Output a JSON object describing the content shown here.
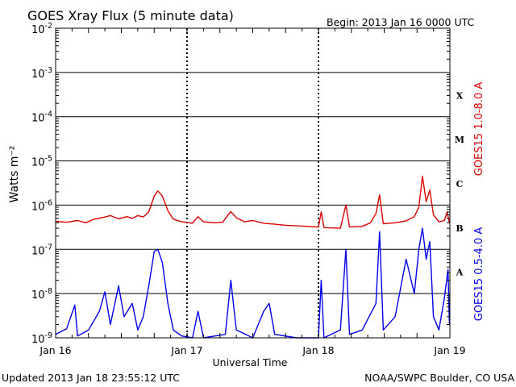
{
  "header": {
    "title": "GOES Xray Flux (5 minute data)",
    "begin": "Begin:  2013 Jan 16 0000 UTC"
  },
  "footer": {
    "updated": "Updated 2013 Jan 18 23:55:12 UTC",
    "credit": "NOAA/SWPC Boulder, CO USA"
  },
  "chart_data": {
    "type": "line",
    "title": "GOES Xray Flux (5 minute data)",
    "xlabel": "Universal Time",
    "ylabel": "Watts m⁻²",
    "yscale": "log",
    "ylim": [
      1e-09,
      0.01
    ],
    "grid": true,
    "x_ticks": [
      "Jan 16",
      "Jan 17",
      "Jan 18",
      "Jan 19"
    ],
    "y_ticks": [
      {
        "base": "10",
        "exp": "-2"
      },
      {
        "base": "10",
        "exp": "-3"
      },
      {
        "base": "10",
        "exp": "-4"
      },
      {
        "base": "10",
        "exp": "-5"
      },
      {
        "base": "10",
        "exp": "-6"
      },
      {
        "base": "10",
        "exp": "-7"
      },
      {
        "base": "10",
        "exp": "-8"
      },
      {
        "base": "10",
        "exp": "-9"
      }
    ],
    "flare_classes": [
      {
        "label": "X",
        "value": 0.0001
      },
      {
        "label": "M",
        "value": 1e-05
      },
      {
        "label": "C",
        "value": 1e-06
      },
      {
        "label": "B",
        "value": 1e-07
      },
      {
        "label": "A",
        "value": 1e-08
      }
    ],
    "series": [
      {
        "name": "GOES15 1.0-8.0 A",
        "color": "#dd0000",
        "points": [
          [
            "Jan 16 00:00",
            4.3e-07
          ],
          [
            "Jan 16 02:00",
            4.1e-07
          ],
          [
            "Jan 16 04:00",
            4.5e-07
          ],
          [
            "Jan 16 05:30",
            4e-07
          ],
          [
            "Jan 16 07:00",
            4.8e-07
          ],
          [
            "Jan 16 08:30",
            5.2e-07
          ],
          [
            "Jan 16 10:00",
            5.8e-07
          ],
          [
            "Jan 16 11:30",
            4.9e-07
          ],
          [
            "Jan 16 13:00",
            5.5e-07
          ],
          [
            "Jan 16 14:00",
            5e-07
          ],
          [
            "Jan 16 15:00",
            5.8e-07
          ],
          [
            "Jan 16 16:00",
            5.4e-07
          ],
          [
            "Jan 16 17:00",
            7e-07
          ],
          [
            "Jan 16 18:00",
            1.6e-06
          ],
          [
            "Jan 16 18:40",
            2.1e-06
          ],
          [
            "Jan 16 19:30",
            1.6e-06
          ],
          [
            "Jan 16 20:30",
            7.5e-07
          ],
          [
            "Jan 16 21:30",
            4.8e-07
          ],
          [
            "Jan 16 23:00",
            4.2e-07
          ],
          [
            "Jan 17 01:00",
            3.9e-07
          ],
          [
            "Jan 17 02:00",
            5.5e-07
          ],
          [
            "Jan 17 03:00",
            4.2e-07
          ],
          [
            "Jan 17 05:00",
            4e-07
          ],
          [
            "Jan 17 06:30",
            4.1e-07
          ],
          [
            "Jan 17 07:30",
            6e-07
          ],
          [
            "Jan 17 08:00",
            7.2e-07
          ],
          [
            "Jan 17 09:00",
            5.2e-07
          ],
          [
            "Jan 17 10:30",
            4.2e-07
          ],
          [
            "Jan 17 12:00",
            4.5e-07
          ],
          [
            "Jan 17 14:00",
            3.9e-07
          ],
          [
            "Jan 17 16:00",
            3.7e-07
          ],
          [
            "Jan 17 18:00",
            3.5e-07
          ],
          [
            "Jan 17 20:00",
            3.4e-07
          ],
          [
            "Jan 17 22:00",
            3.3e-07
          ],
          [
            "Jan 18 00:00",
            3.2e-07
          ],
          [
            "Jan 18 00:30",
            7e-07
          ],
          [
            "Jan 18 01:00",
            3.1e-07
          ],
          [
            "Jan 18 04:00",
            3e-07
          ],
          [
            "Jan 18 05:00",
            1e-06
          ],
          [
            "Jan 18 05:40",
            3.2e-07
          ],
          [
            "Jan 18 08:00",
            3.3e-07
          ],
          [
            "Jan 18 09:30",
            4e-07
          ],
          [
            "Jan 18 10:30",
            6.5e-07
          ],
          [
            "Jan 18 11:10",
            1.7e-06
          ],
          [
            "Jan 18 11:50",
            3.8e-07
          ],
          [
            "Jan 18 14:00",
            4e-07
          ],
          [
            "Jan 18 16:00",
            4.4e-07
          ],
          [
            "Jan 18 17:30",
            5.5e-07
          ],
          [
            "Jan 18 18:20",
            9e-07
          ],
          [
            "Jan 18 19:00",
            4.5e-06
          ],
          [
            "Jan 18 19:40",
            1.2e-06
          ],
          [
            "Jan 18 20:20",
            2.2e-06
          ],
          [
            "Jan 18 21:00",
            6e-07
          ],
          [
            "Jan 18 22:00",
            4.2e-07
          ],
          [
            "Jan 18 23:00",
            4.5e-07
          ],
          [
            "Jan 18 23:30",
            7e-07
          ],
          [
            "Jan 18 23:55",
            4e-07
          ]
        ]
      },
      {
        "name": "GOES15 0.5-4.0 A",
        "color": "#0000ee",
        "points": [
          [
            "Jan 16 00:00",
            1.2e-09
          ],
          [
            "Jan 16 02:00",
            1.6e-09
          ],
          [
            "Jan 16 03:30",
            5.5e-09
          ],
          [
            "Jan 16 04:00",
            1.1e-09
          ],
          [
            "Jan 16 06:00",
            1.5e-09
          ],
          [
            "Jan 16 08:00",
            4e-09
          ],
          [
            "Jan 16 09:00",
            1.1e-08
          ],
          [
            "Jan 16 10:00",
            2e-09
          ],
          [
            "Jan 16 11:30",
            1.5e-08
          ],
          [
            "Jan 16 12:30",
            3e-09
          ],
          [
            "Jan 16 14:00",
            6e-09
          ],
          [
            "Jan 16 15:00",
            1.5e-09
          ],
          [
            "Jan 16 16:00",
            3e-09
          ],
          [
            "Jan 16 17:00",
            1.5e-08
          ],
          [
            "Jan 16 18:00",
            9e-08
          ],
          [
            "Jan 16 18:40",
            1e-07
          ],
          [
            "Jan 16 19:30",
            5e-08
          ],
          [
            "Jan 16 20:30",
            6e-09
          ],
          [
            "Jan 16 21:30",
            1.5e-09
          ],
          [
            "Jan 16 23:00",
            1.1e-09
          ],
          [
            "Jan 17 01:00",
            1e-09
          ],
          [
            "Jan 17 02:00",
            4e-09
          ],
          [
            "Jan 17 03:00",
            1e-09
          ],
          [
            "Jan 17 07:00",
            1.2e-09
          ],
          [
            "Jan 17 08:00",
            2e-08
          ],
          [
            "Jan 17 09:00",
            1.5e-09
          ],
          [
            "Jan 17 12:00",
            1e-09
          ],
          [
            "Jan 17 14:00",
            4e-09
          ],
          [
            "Jan 17 15:00",
            6e-09
          ],
          [
            "Jan 17 16:00",
            1.2e-09
          ],
          [
            "Jan 17 20:00",
            1e-09
          ],
          [
            "Jan 18 00:00",
            1e-09
          ],
          [
            "Jan 18 00:30",
            2e-08
          ],
          [
            "Jan 18 01:00",
            1e-09
          ],
          [
            "Jan 18 04:00",
            1.5e-09
          ],
          [
            "Jan 18 05:00",
            1e-07
          ],
          [
            "Jan 18 05:40",
            1.2e-09
          ],
          [
            "Jan 18 08:00",
            1.5e-09
          ],
          [
            "Jan 18 10:30",
            6e-09
          ],
          [
            "Jan 18 11:10",
            2.5e-07
          ],
          [
            "Jan 18 11:50",
            1.5e-09
          ],
          [
            "Jan 18 14:00",
            3e-09
          ],
          [
            "Jan 18 16:00",
            6e-08
          ],
          [
            "Jan 18 17:30",
            1e-08
          ],
          [
            "Jan 18 18:20",
            1e-07
          ],
          [
            "Jan 18 19:00",
            3e-07
          ],
          [
            "Jan 18 19:40",
            6e-08
          ],
          [
            "Jan 18 20:20",
            1.5e-07
          ],
          [
            "Jan 18 21:00",
            3e-09
          ],
          [
            "Jan 18 22:00",
            1.5e-09
          ],
          [
            "Jan 18 23:00",
            8e-09
          ],
          [
            "Jan 18 23:40",
            3.5e-08
          ],
          [
            "Jan 18 23:55",
            2e-09
          ]
        ]
      }
    ]
  }
}
